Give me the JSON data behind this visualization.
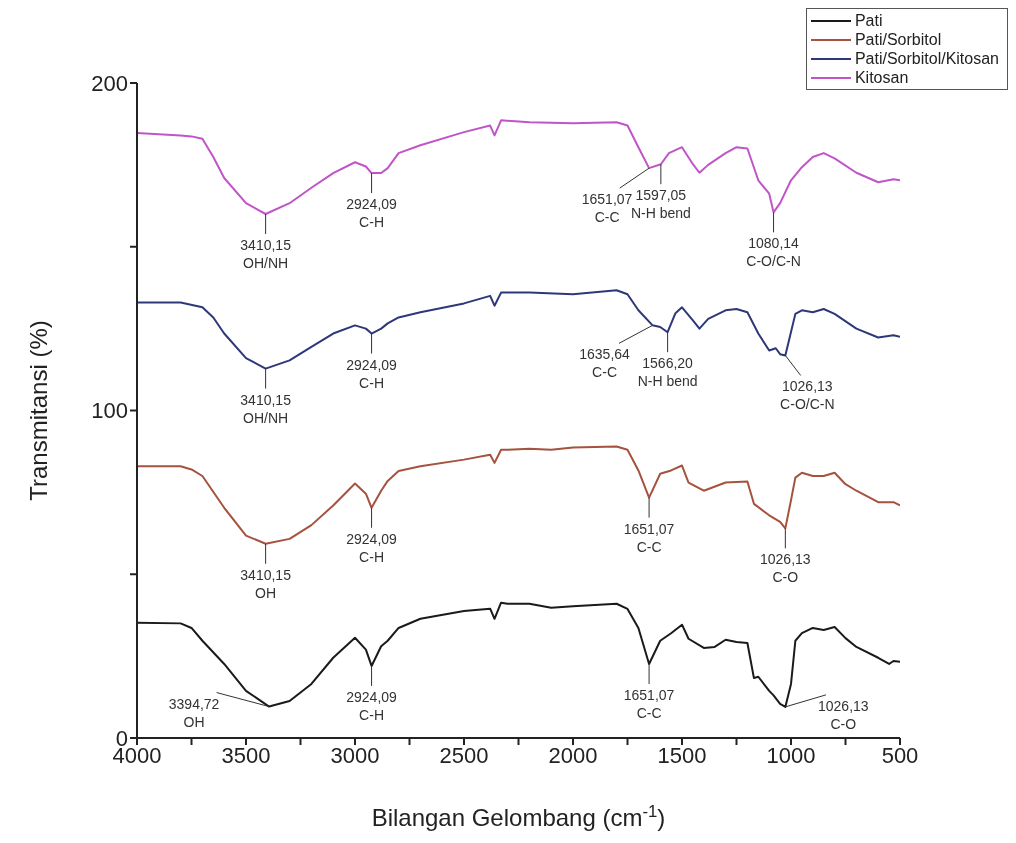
{
  "chart_data": {
    "type": "line",
    "xlabel": "Bilangan Gelombang (cm$^{-1}$)",
    "ylabel": "Transmitansi (%)",
    "xlim": [
      4000,
      500
    ],
    "xticks": [
      4000,
      {
        "value": 3750,
        "label": null
      },
      3500,
      {
        "value": 3250,
        "label": null
      },
      3000,
      {
        "value": 2750,
        "label": null
      },
      2500,
      {
        "value": 2250,
        "label": null
      },
      2000,
      {
        "value": 1750,
        "label": null
      },
      1500,
      {
        "value": 1250,
        "label": null
      },
      1000,
      {
        "value": 750,
        "label": null
      },
      500
    ],
    "ylim": [
      0,
      200
    ],
    "yticks": [
      0,
      {
        "value": 50,
        "label": null
      },
      100,
      {
        "value": 150,
        "label": null
      },
      200
    ],
    "grid": false,
    "legend": "top right",
    "marker": "none",
    "line_style": "solid",
    "series": [
      {
        "name": "Pati",
        "color": "#1a1a1a",
        "x": [
          4000,
          3800,
          3750,
          3700,
          3600,
          3500,
          3394,
          3300,
          3200,
          3100,
          3000,
          2950,
          2924,
          2880,
          2850,
          2800,
          2700,
          2500,
          2380,
          2360,
          2330,
          2300,
          2200,
          2100,
          2000,
          1800,
          1750,
          1700,
          1651,
          1600,
          1550,
          1500,
          1470,
          1400,
          1350,
          1300,
          1250,
          1200,
          1170,
          1150,
          1100,
          1080,
          1050,
          1026,
          1000,
          980,
          950,
          900,
          850,
          800,
          750,
          700,
          600,
          550,
          530,
          500
        ],
        "values": [
          35.2,
          35,
          33.6,
          29.7,
          22.6,
          14.4,
          9.6,
          11.3,
          16.5,
          24.5,
          30.6,
          27,
          22,
          28,
          29.7,
          33.6,
          36.4,
          38.8,
          39.5,
          36.4,
          41.3,
          41,
          41,
          39.8,
          40.2,
          41,
          39.4,
          33.6,
          22.6,
          29.7,
          32,
          34.6,
          30.3,
          27.5,
          27.8,
          30,
          29.3,
          29,
          18.3,
          18.7,
          14.4,
          13,
          10.4,
          9.5,
          16.5,
          29.7,
          32,
          33.6,
          33,
          33.9,
          30.5,
          27.8,
          24.5,
          22.6,
          23.5,
          23.3
        ]
      },
      {
        "name": "Pati/Sorbitol",
        "color": "#a5523e",
        "x": [
          4000,
          3800,
          3750,
          3700,
          3600,
          3500,
          3410,
          3300,
          3200,
          3100,
          3000,
          2950,
          2924,
          2880,
          2850,
          2800,
          2700,
          2500,
          2380,
          2360,
          2330,
          2300,
          2200,
          2100,
          2000,
          1800,
          1750,
          1700,
          1651,
          1600,
          1550,
          1500,
          1470,
          1400,
          1300,
          1200,
          1170,
          1100,
          1050,
          1026,
          1000,
          980,
          950,
          900,
          850,
          800,
          750,
          700,
          600,
          530,
          500
        ],
        "values": [
          83,
          83,
          82,
          80,
          70.3,
          61.8,
          59.3,
          60.8,
          65,
          71,
          77.7,
          74.6,
          70.3,
          75.5,
          78.5,
          81.5,
          83,
          85,
          86.5,
          84,
          88,
          88,
          88.3,
          88,
          88.7,
          89,
          88,
          81.7,
          73.4,
          80.7,
          81.7,
          83.2,
          78,
          75.5,
          78,
          78.3,
          71.5,
          68,
          66,
          64,
          72.6,
          79.5,
          81,
          80,
          80,
          81,
          77.5,
          75.5,
          72,
          72,
          71
        ]
      },
      {
        "name": "Pati/Sorbitol/Kitosan",
        "color": "#2e3878",
        "x": [
          4000,
          3800,
          3700,
          3650,
          3600,
          3500,
          3410,
          3300,
          3200,
          3100,
          3000,
          2950,
          2924,
          2880,
          2850,
          2800,
          2700,
          2500,
          2380,
          2360,
          2330,
          2200,
          2000,
          1800,
          1750,
          1700,
          1635,
          1600,
          1566,
          1530,
          1500,
          1450,
          1420,
          1380,
          1300,
          1250,
          1200,
          1150,
          1100,
          1070,
          1050,
          1026,
          1000,
          980,
          950,
          900,
          850,
          800,
          700,
          600,
          530,
          500
        ],
        "values": [
          133,
          133,
          131.5,
          128.4,
          123.5,
          116,
          112.8,
          115.3,
          119.4,
          123.5,
          126,
          125,
          123.5,
          125,
          126.6,
          128.4,
          130,
          132.7,
          135,
          132,
          136,
          136,
          135.5,
          136.7,
          135.5,
          130.6,
          126,
          125.5,
          123.9,
          129.7,
          131.5,
          127.5,
          125,
          128,
          130.6,
          131,
          130,
          123.5,
          118.3,
          119,
          117.2,
          116.8,
          124,
          129.5,
          130.6,
          130,
          131,
          129.5,
          125,
          122.3,
          123,
          122.5
        ]
      },
      {
        "name": "Kitosan",
        "color": "#c055c8",
        "x": [
          4000,
          3800,
          3750,
          3700,
          3650,
          3600,
          3500,
          3410,
          3300,
          3200,
          3100,
          3000,
          2950,
          2924,
          2880,
          2850,
          2800,
          2700,
          2500,
          2380,
          2360,
          2330,
          2200,
          2000,
          1800,
          1750,
          1700,
          1651,
          1597,
          1560,
          1500,
          1450,
          1420,
          1380,
          1300,
          1250,
          1200,
          1150,
          1100,
          1080,
          1050,
          1000,
          950,
          900,
          850,
          800,
          700,
          600,
          530,
          500
        ],
        "values": [
          184.7,
          184,
          183.7,
          183,
          177.4,
          171,
          163.3,
          160,
          163.3,
          168,
          172.5,
          175.8,
          174.5,
          172.5,
          172.5,
          174,
          178.6,
          181,
          185,
          187,
          184,
          188.6,
          188,
          187.7,
          188,
          187,
          180.4,
          174,
          175.2,
          178.6,
          180.4,
          175.2,
          172.6,
          175,
          178.6,
          180.4,
          180,
          170.3,
          166.2,
          160.5,
          163.3,
          170.3,
          174.3,
          177.4,
          178.6,
          177,
          172.6,
          169.7,
          170.6,
          170.3
        ]
      }
    ],
    "annotations": [
      {
        "text": "3410,15\nOH/NH",
        "x": 3410,
        "y": 160
      },
      {
        "text": "2924,09\nC-H",
        "x": 2924,
        "y": 172.5
      },
      {
        "text": "1651,07\nC-C",
        "x": 1651,
        "y": 174
      },
      {
        "text": "1597,05\nN-H bend",
        "x": 1597,
        "y": 175.2
      },
      {
        "text": "1080,14\nC-O/C-N",
        "x": 1080,
        "y": 160.5
      },
      {
        "text": "3410,15\nOH/NH",
        "x": 3410,
        "y": 112.8
      },
      {
        "text": "2924,09\nC-H",
        "x": 2924,
        "y": 123.5
      },
      {
        "text": "1635,64\nC-C",
        "x": 1635,
        "y": 126
      },
      {
        "text": "1566,20\nN-H bend",
        "x": 1566,
        "y": 123.9
      },
      {
        "text": "1026,13\nC-O/C-N",
        "x": 1026,
        "y": 116.8
      },
      {
        "text": "3410,15\nOH",
        "x": 3410,
        "y": 59.3
      },
      {
        "text": "2924,09\nC-H",
        "x": 2924,
        "y": 70.3
      },
      {
        "text": "1651,07\nC-C",
        "x": 1651,
        "y": 73.4
      },
      {
        "text": "1026,13\nC-O",
        "x": 1026,
        "y": 64
      },
      {
        "text": "3394,72\nOH",
        "x": 3394,
        "y": 9.6
      },
      {
        "text": "2924,09\nC-H",
        "x": 2924,
        "y": 22
      },
      {
        "text": "1651,07\nC-C",
        "x": 1651,
        "y": 22.6
      },
      {
        "text": "1026,13\nC-O",
        "x": 1026,
        "y": 9.5
      }
    ]
  }
}
